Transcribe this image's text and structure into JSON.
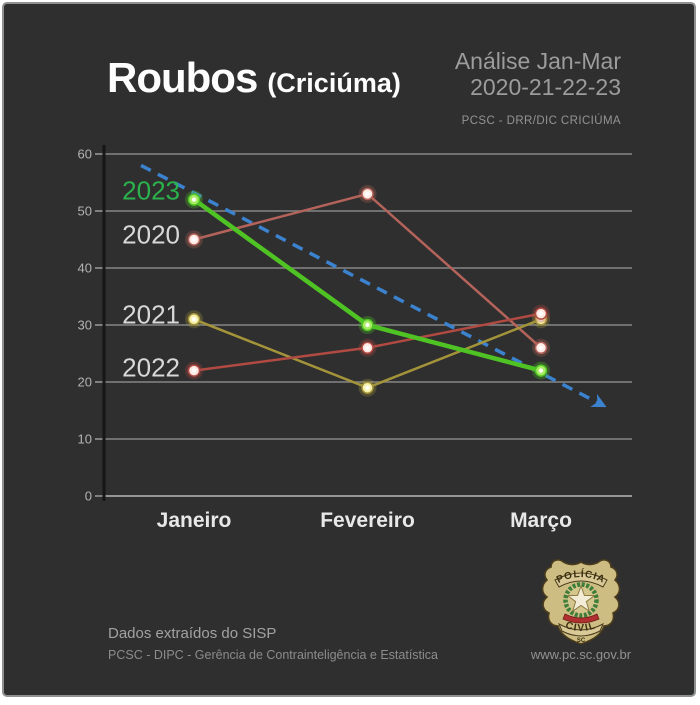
{
  "header": {
    "title": "Roubos",
    "subtitle": "(Criciúma)",
    "analysis_line1": "Análise Jan-Mar",
    "analysis_line2": "2020-21-22-23",
    "analysis_line3": "PCSC - DRR/DIC CRICIÚMA"
  },
  "chart_data": {
    "type": "line",
    "title": "Roubos (Criciúma)",
    "categories": [
      "Janeiro",
      "Fevereiro",
      "Março"
    ],
    "series": [
      {
        "name": "2020",
        "values": [
          45,
          53,
          26
        ],
        "color": "#b4635b",
        "marker_fill": "#ffece6",
        "label_color": "#d8d8d8",
        "line_width": 2.5,
        "label_dy": -4
      },
      {
        "name": "2021",
        "values": [
          31,
          19,
          31
        ],
        "color": "#a3943a",
        "marker_fill": "#f8f2ae",
        "label_color": "#d8d8d8",
        "line_width": 2.5,
        "label_dy": -4
      },
      {
        "name": "2022",
        "values": [
          22,
          26,
          32
        ],
        "color": "#b04a42",
        "marker_fill": "#ffe9e2",
        "label_color": "#d8d8d8",
        "line_width": 2.5,
        "label_dy": -2
      },
      {
        "name": "2023",
        "values": [
          52,
          30,
          22
        ],
        "color": "#4fc324",
        "marker_fill": "#a8ec62",
        "label_color": "#2bb24c",
        "line_width": 4.5,
        "label_dy": -8
      }
    ],
    "trend": {
      "start": 58,
      "end": 16,
      "color": "#3b82cf",
      "style": "dashed",
      "arrow": true
    },
    "ylim": [
      0,
      60
    ],
    "ytick_step": 10,
    "grid": true,
    "grid_color": "#9b9b9b",
    "axis_color": "#161616",
    "tick_label_color": "#b3b3b3",
    "xlabel_color": "#e8e8e8",
    "legend_position": "left-of-first-points"
  },
  "footer": {
    "left_line1": "Dados extraídos do SISP",
    "left_line2": "PCSC - DIPC - Gerência de Contrainteligência e Estatística",
    "website": "www.pc.sc.gov.br"
  },
  "badge": {
    "top_text": "POLÍCIA",
    "bottom_text": "CIVIL",
    "state": "SC",
    "shield_color": "#cdbd82",
    "outline_color": "#4a3c1c",
    "wreath_color": "#3e7d3a",
    "ribbon_color": "#b03030",
    "star_color": "#f2ecd6"
  }
}
